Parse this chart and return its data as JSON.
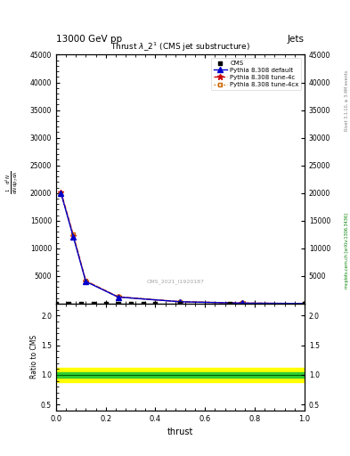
{
  "title": "13000 GeV pp",
  "title_right": "Jets",
  "plot_title": "Thrust $\\lambda\\_2^1$ (CMS jet substructure)",
  "xlabel": "thrust",
  "ylabel_main": "$\\frac{1}{\\mathrm{d}N}\\frac{\\mathrm{d}^2N}{\\mathrm{d}p_T\\,\\mathrm{d}\\lambda}$",
  "ylabel_ratio": "Ratio to CMS",
  "watermark": "CMS_2021_I1920187",
  "rivet_text": "Rivet 3.1.10, ≥ 3.4M events",
  "mcplots_text": "mcplots.cern.ch [arXiv:1306.3436]",
  "main_x": [
    0.02,
    0.07,
    0.12,
    0.25,
    0.5,
    0.75,
    1.0
  ],
  "pythia_default_y": [
    20000,
    12000,
    4000,
    1200,
    350,
    100,
    30
  ],
  "pythia_4c_y": [
    20200,
    12300,
    4100,
    1230,
    360,
    105,
    32
  ],
  "pythia_4cx_y": [
    19800,
    12500,
    4150,
    1250,
    365,
    107,
    33
  ],
  "cms_x": [
    0.0,
    0.05,
    0.1,
    0.15,
    0.2,
    0.25,
    0.3,
    0.35,
    0.4,
    0.5,
    0.7,
    1.0
  ],
  "cms_y": [
    0,
    0,
    0,
    0,
    0,
    0,
    0,
    0,
    0,
    0,
    0,
    0
  ],
  "color_default": "#0000cc",
  "color_4c": "#cc0000",
  "color_4cx": "#cc6600",
  "color_cms": "#000000",
  "ratio_band_green_low": 0.95,
  "ratio_band_green_high": 1.05,
  "ratio_band_yellow_low": 0.88,
  "ratio_band_yellow_high": 1.12,
  "ratio_ylim": [
    0.4,
    2.2
  ],
  "ratio_yticks": [
    0.5,
    1.0,
    1.5,
    2.0
  ],
  "main_ylim": [
    0,
    45000
  ],
  "main_yticks": [
    5000,
    10000,
    15000,
    20000,
    25000,
    30000,
    35000,
    40000,
    45000
  ],
  "xlim": [
    0.0,
    1.0
  ]
}
